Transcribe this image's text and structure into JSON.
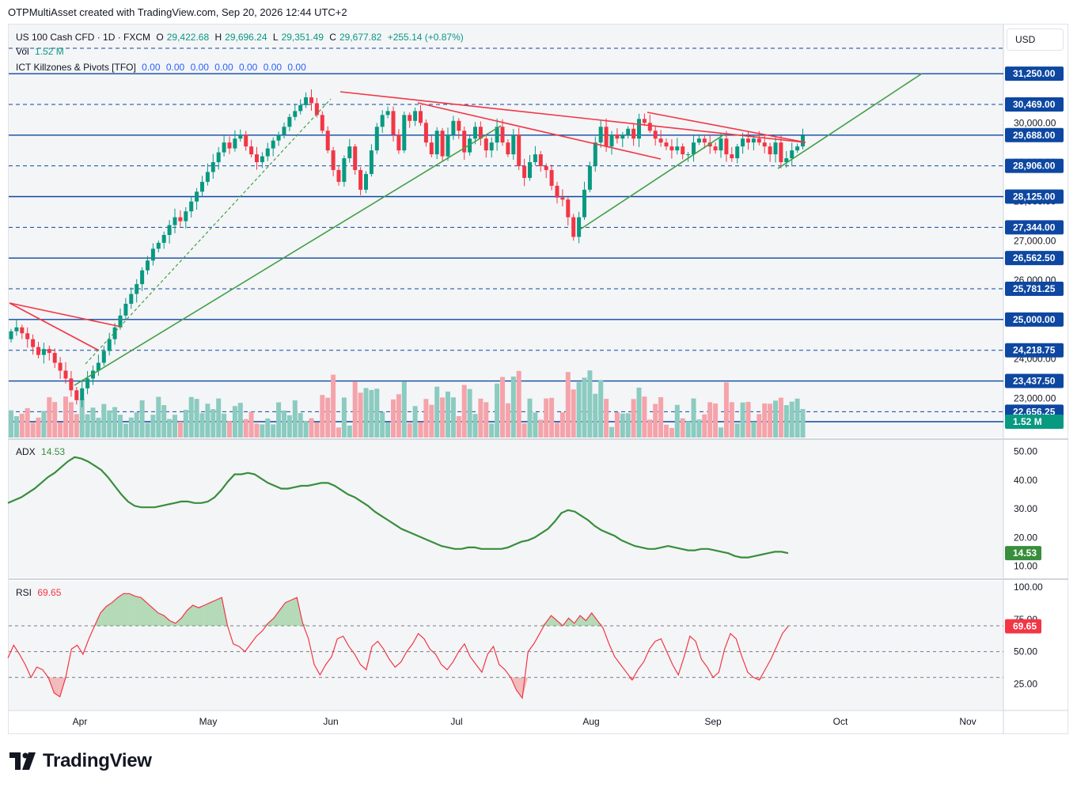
{
  "header": {
    "text": "OTPMultiAsset created with TradingView.com, Sep 20, 2026 12:44 UTC+2"
  },
  "legend": {
    "symbol": "US 100 Cash CFD · 1D · FXCM",
    "o_label": "O",
    "o_value": "29,422.68",
    "h_label": "H",
    "h_value": "29,696.24",
    "l_label": "L",
    "l_value": "29,351.49",
    "c_label": "C",
    "c_value": "29,677.82",
    "change": "+255.14 (+0.87%)",
    "vol_label": "Vol",
    "vol_value": "1.52 M",
    "ict_label": "ICT Killzones & Pivots [TFO]",
    "ict_values": [
      "0.00",
      "0.00",
      "0.00",
      "0.00",
      "0.00",
      "0.00",
      "0.00"
    ]
  },
  "currency": "USD",
  "colors": {
    "up": "#089981",
    "down": "#f23645",
    "level_line": "#0d47a1",
    "adx": "#388e3c",
    "rsi": "#f23645",
    "trend_red": "#f23645",
    "trend_green": "#43a047"
  },
  "chart_data": [
    {
      "type": "candlestick",
      "title": "US 100 Cash CFD · 1D · FXCM",
      "x_ticks": [
        "Apr",
        "May",
        "Jun",
        "Jul",
        "Aug",
        "Sep",
        "Oct",
        "Nov"
      ],
      "price_axis_ticks": [
        "30,000.00",
        "29,000.00",
        "28,000.00",
        "27,000.00",
        "26,000.00",
        "25,000.00",
        "24,000.00",
        "23,000.00"
      ],
      "ylim": [
        22000,
        32500
      ],
      "level_labels": [
        {
          "value": 31250.0,
          "label": "31,250.00",
          "style": "solid"
        },
        {
          "value": 30469.0,
          "label": "30,469.00",
          "style": "dashed"
        },
        {
          "value": 29688.0,
          "label": "29,688.00",
          "style": "solid"
        },
        {
          "value": 28906.0,
          "label": "28,906.00",
          "style": "dashed"
        },
        {
          "value": 28125.0,
          "label": "28,125.00",
          "style": "solid"
        },
        {
          "value": 27344.0,
          "label": "27,344.00",
          "style": "dashed"
        },
        {
          "value": 26562.5,
          "label": "26,562.50",
          "style": "solid"
        },
        {
          "value": 25781.25,
          "label": "25,781.25",
          "style": "dashed"
        },
        {
          "value": 25000.0,
          "label": "25,000.00",
          "style": "solid"
        },
        {
          "value": 24218.75,
          "label": "24,218.75",
          "style": "dashed"
        },
        {
          "value": 23437.5,
          "label": "23,437.50",
          "style": "solid"
        },
        {
          "value": 22656.25,
          "label": "22,656.25",
          "style": "dashed"
        }
      ],
      "last_close": 29677.82,
      "closes": [
        24700,
        24800,
        24650,
        24500,
        24300,
        24100,
        24250,
        24150,
        23900,
        23700,
        23500,
        23200,
        22950,
        23250,
        23500,
        23700,
        23900,
        24200,
        24500,
        24800,
        25100,
        25400,
        25650,
        25900,
        26250,
        26500,
        26800,
        26950,
        27150,
        27400,
        27600,
        27500,
        27750,
        28000,
        28250,
        28500,
        28750,
        29000,
        29250,
        29500,
        29350,
        29600,
        29700,
        29400,
        29200,
        29000,
        29150,
        29350,
        29550,
        29700,
        29900,
        30150,
        30300,
        30450,
        30650,
        30500,
        30200,
        29800,
        29300,
        28800,
        28500,
        29100,
        29400,
        28800,
        28300,
        28700,
        29300,
        29900,
        30200,
        30300,
        29700,
        29300,
        30200,
        30050,
        30300,
        30000,
        29500,
        29200,
        29800,
        29150,
        29700,
        30050,
        29800,
        29250,
        29600,
        29900,
        29600,
        29300,
        29500,
        29900,
        29500,
        29200,
        29700,
        28900,
        28600,
        29000,
        29200,
        28900,
        28800,
        28400,
        28100,
        28050,
        27600,
        27100,
        27600,
        28300,
        28900,
        29500,
        29900,
        29400,
        29700,
        29600,
        29700,
        29850,
        29600,
        30100,
        30000,
        29800,
        29600,
        29500,
        29400,
        29300,
        29400,
        29200,
        29200,
        29500,
        29600,
        29500,
        29400,
        29300,
        29600,
        29200,
        29100,
        29400,
        29600,
        29500,
        29600,
        29500,
        29400,
        29200,
        29500,
        29000,
        29100,
        29300,
        29400,
        29677
      ]
    },
    {
      "type": "bar",
      "title": "Vol",
      "last_value_label": "1.52 M"
    },
    {
      "type": "line",
      "title": "ADX",
      "last_value": 14.53,
      "last_value_label": "14.53",
      "ylim": [
        6,
        54
      ],
      "y_ticks": [
        "50.00",
        "40.00",
        "30.00",
        "20.00",
        "10.00"
      ],
      "values": [
        32,
        33,
        34,
        35.5,
        37,
        39,
        41,
        42.5,
        44.5,
        46.5,
        48,
        47.5,
        46.5,
        45,
        43.5,
        41,
        38,
        35,
        32.5,
        31,
        30.5,
        30.5,
        30.5,
        31,
        31.5,
        32,
        32.5,
        32.5,
        32,
        32,
        32.5,
        34,
        36.5,
        39.5,
        42,
        42,
        42.5,
        42,
        40.5,
        39,
        38,
        37,
        37,
        37.5,
        38,
        38,
        38.5,
        39,
        39,
        38,
        36.5,
        35,
        34,
        32.5,
        31,
        29,
        27.5,
        26,
        24.5,
        23,
        22,
        21,
        20,
        19,
        18,
        17,
        16.5,
        16,
        16,
        16.5,
        16.5,
        16,
        16,
        16,
        16,
        16.5,
        17.5,
        18.5,
        19,
        20,
        21.5,
        23,
        25.5,
        28.5,
        29.5,
        29,
        27.5,
        26,
        24,
        22.5,
        21.5,
        20.5,
        19,
        18,
        17,
        16.5,
        16,
        16,
        16.5,
        17,
        16.5,
        16,
        15.5,
        15.5,
        16,
        16,
        15.5,
        15,
        14.5,
        13.5,
        13,
        13,
        13.5,
        14,
        14.5,
        15,
        15,
        14.5
      ]
    },
    {
      "type": "line",
      "title": "RSI",
      "last_value": 69.65,
      "last_value_label": "69.65",
      "ylim": [
        5,
        105
      ],
      "y_ticks": [
        "100.00",
        "75.00",
        "50.00",
        "25.00"
      ],
      "bands": [
        70,
        50,
        30
      ],
      "values": [
        45,
        55,
        48,
        40,
        30,
        38,
        36,
        30,
        18,
        15,
        30,
        52,
        55,
        48,
        60,
        70,
        80,
        85,
        88,
        92,
        95,
        95,
        93,
        92,
        88,
        84,
        80,
        78,
        74,
        72,
        76,
        82,
        86,
        84,
        86,
        88,
        90,
        92,
        70,
        56,
        54,
        50,
        56,
        62,
        66,
        72,
        76,
        82,
        88,
        90,
        92,
        72,
        60,
        40,
        32,
        40,
        46,
        60,
        62,
        54,
        48,
        40,
        36,
        54,
        58,
        52,
        44,
        38,
        42,
        50,
        56,
        64,
        60,
        52,
        48,
        40,
        36,
        42,
        50,
        56,
        46,
        40,
        34,
        48,
        54,
        40,
        36,
        30,
        20,
        14,
        50,
        56,
        64,
        72,
        78,
        74,
        70,
        76,
        72,
        78,
        74,
        80,
        74,
        68,
        56,
        46,
        40,
        34,
        28,
        36,
        42,
        52,
        58,
        60,
        50,
        40,
        32,
        46,
        62,
        58,
        44,
        38,
        30,
        34,
        52,
        64,
        60,
        46,
        34,
        30,
        28,
        36,
        44,
        54,
        64,
        69.65
      ]
    }
  ]
}
